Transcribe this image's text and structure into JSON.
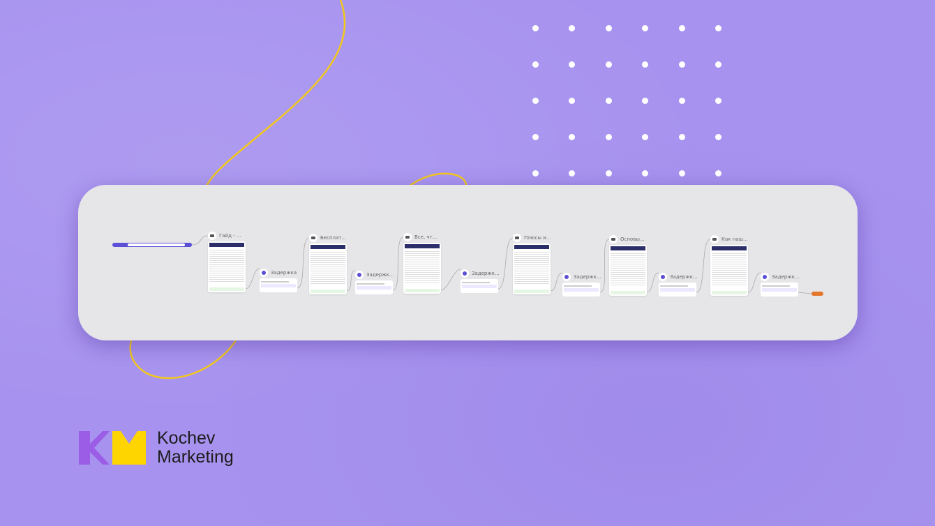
{
  "flow": {
    "trigger": {
      "label": ""
    },
    "emails": [
      {
        "title": "Гайд - ..."
      },
      {
        "title": "Бесплат..."
      },
      {
        "title": "Все, чт..."
      },
      {
        "title": "Плюсы и..."
      },
      {
        "title": "Основы..."
      },
      {
        "title": "Как наш..."
      }
    ],
    "delays": [
      {
        "title": "Задержка"
      },
      {
        "title": "Задержк..."
      },
      {
        "title": "Задержк..."
      },
      {
        "title": "Задержк..."
      },
      {
        "title": "Задержк..."
      },
      {
        "title": "Задержк..."
      }
    ]
  },
  "brand": {
    "name_line1": "Kochev",
    "name_line2": "Marketing",
    "colors": {
      "purple": "#9b5de5",
      "yellow": "#ffd500",
      "background": "#a793ef"
    }
  }
}
